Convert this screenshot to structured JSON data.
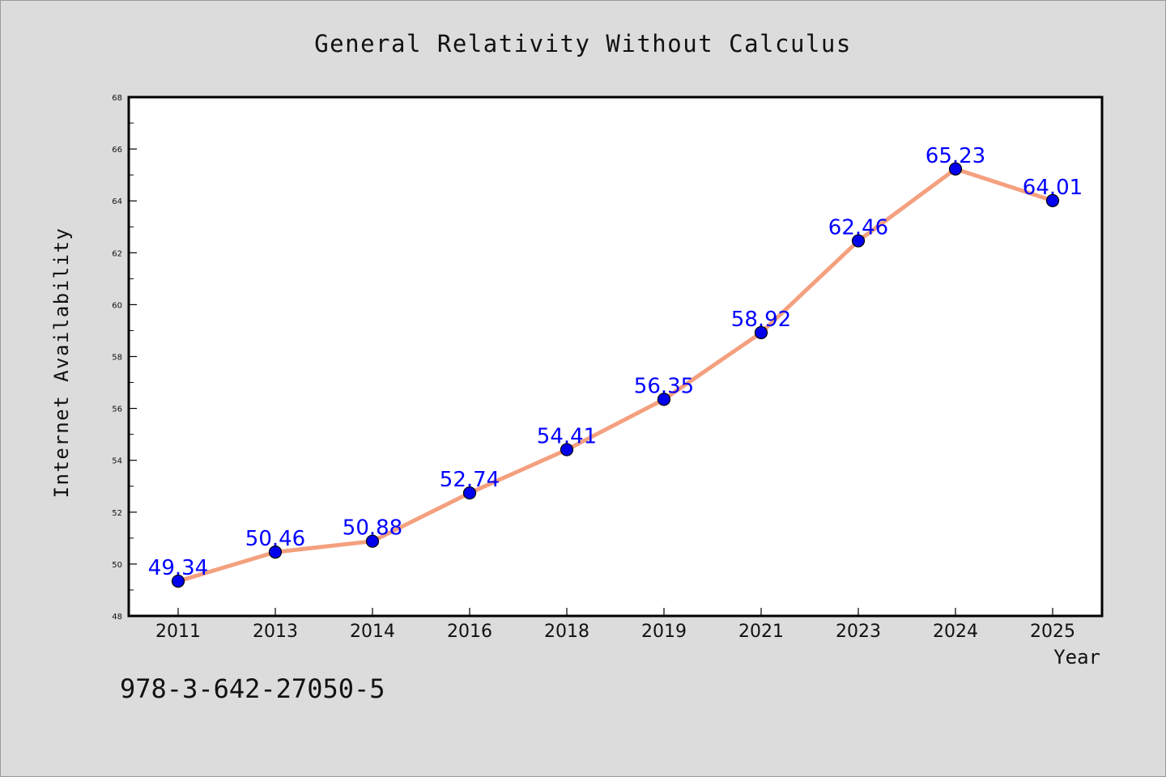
{
  "chart_data": {
    "type": "line",
    "title": "General Relativity Without Calculus",
    "xlabel": "Year",
    "ylabel": "Internet Availability",
    "categories": [
      "2011",
      "2013",
      "2014",
      "2016",
      "2018",
      "2019",
      "2021",
      "2023",
      "2024",
      "2025"
    ],
    "series": [
      {
        "values": [
          49.34,
          50.46,
          50.88,
          52.74,
          54.41,
          56.35,
          58.92,
          62.46,
          65.23,
          64.01
        ]
      }
    ],
    "data_labels": [
      "49.34",
      "50.46",
      "50.88",
      "52.74",
      "54.41",
      "56.35",
      "58.92",
      "62.46",
      "65.23",
      "64.01"
    ],
    "ylim": [
      48,
      68
    ],
    "yticks": [
      48,
      50,
      52,
      54,
      56,
      58,
      60,
      62,
      64,
      66,
      68
    ],
    "grid": false,
    "colors": {
      "line": "#f4a07e",
      "marker": "#0000ee",
      "label": "#0000ff",
      "background": "#dcdcdc",
      "plot_bg": "#ffffff"
    }
  },
  "footer": {
    "isbn": "978-3-642-27050-5"
  }
}
